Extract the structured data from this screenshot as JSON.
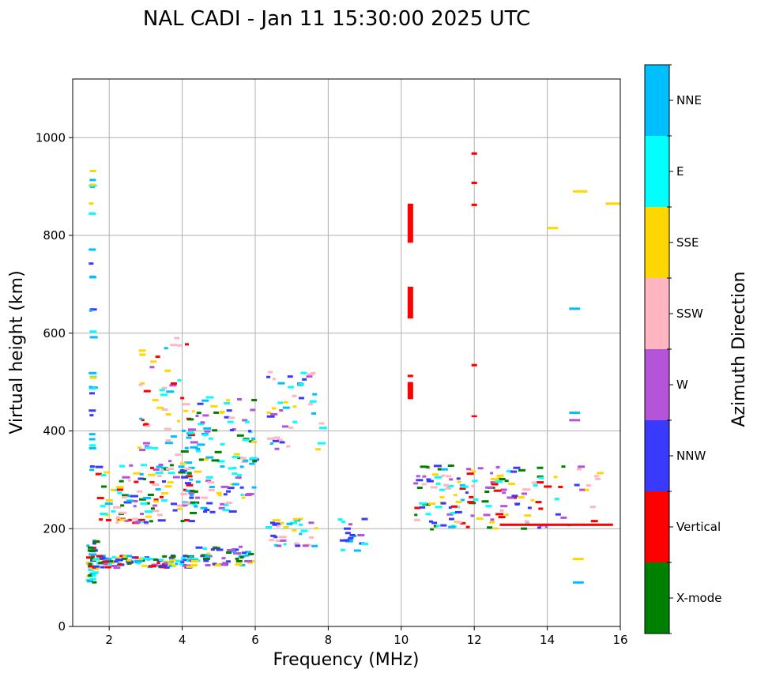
{
  "chart_data": {
    "type": "scatter",
    "title": "NAL CADI - Jan 11 15:30:00 2025 UTC",
    "xlabel": "Frequency (MHz)",
    "ylabel": "Virtual height (km)",
    "xlim": [
      1,
      16
    ],
    "ylim": [
      0,
      1120
    ],
    "xticks": [
      2,
      4,
      6,
      8,
      10,
      12,
      14,
      16
    ],
    "yticks": [
      0,
      200,
      400,
      600,
      800,
      1000
    ],
    "grid": true,
    "colorbar": {
      "label": "Azimuth Direction",
      "categories": [
        {
          "name": "X-mode",
          "color": "#008000"
        },
        {
          "name": "Vertical",
          "color": "#ff0000"
        },
        {
          "name": "NNW",
          "color": "#3a3aff"
        },
        {
          "name": "W",
          "color": "#b455d8"
        },
        {
          "name": "SSW",
          "color": "#ffb6c1"
        },
        {
          "name": "SSE",
          "color": "#ffd700"
        },
        {
          "name": "E",
          "color": "#00ffff"
        },
        {
          "name": "NNE",
          "color": "#00bfff"
        }
      ]
    },
    "clusters": [
      {
        "x": [
          1.4,
          1.6
        ],
        "y": [
          90,
          180
        ],
        "n": 45,
        "colors": [
          "X-mode",
          "Vertical",
          "NNW",
          "SSE",
          "E",
          "NNE"
        ]
      },
      {
        "x": [
          1.6,
          4.4
        ],
        "y": [
          120,
          145
        ],
        "n": 110,
        "colors": [
          "X-mode",
          "Vertical",
          "NNW",
          "W",
          "SSE",
          "NNE",
          "E"
        ]
      },
      {
        "x": [
          4.3,
          5.9
        ],
        "y": [
          125,
          165
        ],
        "n": 45,
        "colors": [
          "X-mode",
          "NNW",
          "W",
          "SSE",
          "NNE",
          "E"
        ]
      },
      {
        "x": [
          1.6,
          4.4
        ],
        "y": [
          210,
          330
        ],
        "n": 130,
        "colors": [
          "NNE",
          "E",
          "Vertical",
          "X-mode",
          "W",
          "SSW",
          "SSE",
          "NNW"
        ]
      },
      {
        "x": [
          2.8,
          4.3
        ],
        "y": [
          330,
          590
        ],
        "n": 55,
        "colors": [
          "NNE",
          "E",
          "Vertical",
          "W",
          "SSE",
          "SSW"
        ]
      },
      {
        "x": [
          4.0,
          6.0
        ],
        "y": [
          230,
          470
        ],
        "n": 120,
        "colors": [
          "NNW",
          "W",
          "SSE",
          "E",
          "NNE",
          "X-mode",
          "SSW"
        ]
      },
      {
        "x": [
          6.3,
          7.7
        ],
        "y": [
          160,
          220
        ],
        "n": 35,
        "colors": [
          "SSE",
          "W",
          "SSW",
          "NNE",
          "NNW",
          "E"
        ]
      },
      {
        "x": [
          6.3,
          7.8
        ],
        "y": [
          360,
          530
        ],
        "n": 45,
        "colors": [
          "SSE",
          "W",
          "NNW",
          "NNE",
          "E",
          "SSW"
        ]
      },
      {
        "x": [
          8.3,
          9.0
        ],
        "y": [
          155,
          220
        ],
        "n": 18,
        "colors": [
          "NNE",
          "NNW",
          "W",
          "E"
        ]
      },
      {
        "x": [
          10.3,
          11.8
        ],
        "y": [
          195,
          330
        ],
        "n": 70,
        "colors": [
          "X-mode",
          "Vertical",
          "NNW",
          "SSE",
          "E",
          "NNE",
          "W",
          "SSW"
        ]
      },
      {
        "x": [
          11.8,
          13.0
        ],
        "y": [
          200,
          335
        ],
        "n": 50,
        "colors": [
          "X-mode",
          "Vertical",
          "SSW",
          "SSE",
          "E",
          "W"
        ]
      },
      {
        "x": [
          13.0,
          15.4
        ],
        "y": [
          200,
          330
        ],
        "n": 45,
        "colors": [
          "Vertical",
          "X-mode",
          "SSE",
          "SSW",
          "NNW",
          "W",
          "E"
        ]
      },
      {
        "x": [
          1.48,
          1.52
        ],
        "y": [
          290,
          960
        ],
        "n": 30,
        "colors": [
          "NNE",
          "NNE",
          "NNE",
          "SSE",
          "NNW",
          "E"
        ]
      }
    ],
    "bars": [
      {
        "x": 10.25,
        "y": [
          785,
          865
        ],
        "color": "Vertical"
      },
      {
        "x": 10.25,
        "y": [
          630,
          695
        ],
        "color": "Vertical"
      },
      {
        "x": 10.25,
        "y": [
          465,
          500
        ],
        "color": "Vertical"
      },
      {
        "x": 10.25,
        "y": [
          510,
          515
        ],
        "color": "Vertical"
      },
      {
        "x": 12.0,
        "y": [
          965,
          970
        ],
        "color": "Vertical"
      },
      {
        "x": 12.0,
        "y": [
          905,
          910
        ],
        "color": "Vertical"
      },
      {
        "x": 12.0,
        "y": [
          860,
          865
        ],
        "color": "Vertical"
      },
      {
        "x": 12.0,
        "y": [
          532,
          537
        ],
        "color": "Vertical"
      },
      {
        "x": 12.0,
        "y": [
          428,
          432
        ],
        "color": "Vertical"
      }
    ],
    "hlines": [
      {
        "x": [
          12.7,
          15.8
        ],
        "y": 208,
        "color": "Vertical"
      },
      {
        "x": [
          14.7,
          15.1
        ],
        "y": 890,
        "color": "SSE"
      },
      {
        "x": [
          15.6,
          16.0
        ],
        "y": 865,
        "color": "SSE"
      },
      {
        "x": [
          14.0,
          14.3
        ],
        "y": 815,
        "color": "SSE"
      },
      {
        "x": [
          14.6,
          14.9
        ],
        "y": 650,
        "color": "NNE"
      },
      {
        "x": [
          14.6,
          14.9
        ],
        "y": 437,
        "color": "NNE"
      },
      {
        "x": [
          14.6,
          14.9
        ],
        "y": 422,
        "color": "W"
      },
      {
        "x": [
          14.7,
          15.0
        ],
        "y": 138,
        "color": "SSE"
      },
      {
        "x": [
          14.7,
          15.0
        ],
        "y": 90,
        "color": "NNE"
      }
    ]
  }
}
